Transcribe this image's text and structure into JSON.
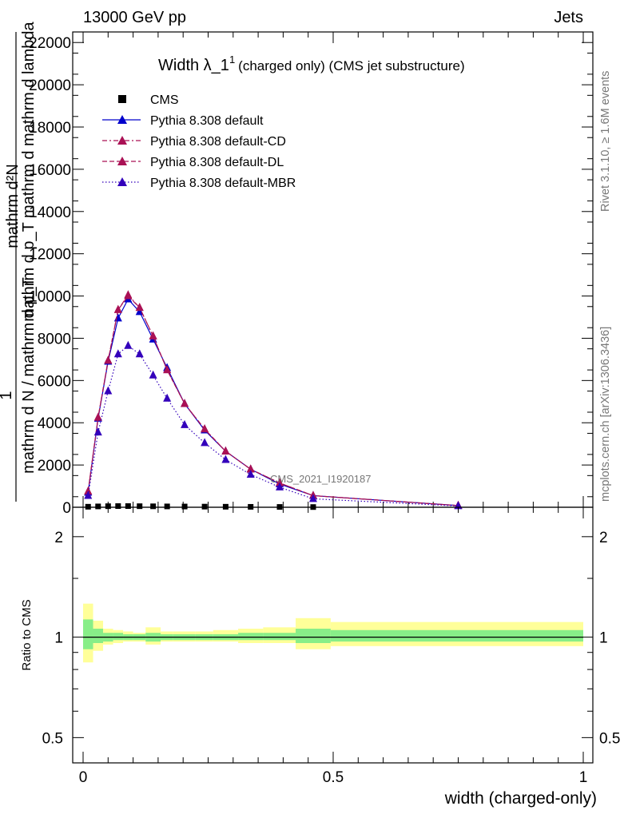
{
  "header": {
    "left": "13000 GeV pp",
    "right": "Jets"
  },
  "side_labels": {
    "rivet": "Rivet 3.1.10, ≥ 1.6M events",
    "mcplots": "mcplots.cern.ch [arXiv:1306.3436]"
  },
  "watermark": "CMS_2021_I1920187",
  "chart_data": [
    {
      "type": "line",
      "title_main": "Width λ_1",
      "title_sup": "1",
      "title_rest": "(charged only) (CMS jet substructure)",
      "xlabel": "width (charged-only)",
      "ylabel_parts": [
        "mathrm d²N",
        "mathrm d p_T mathrm d mathrm d lambda",
        "1",
        "mathrm d N / mathrm d p_T"
      ],
      "xlim": [
        0,
        1
      ],
      "ylim": [
        0,
        22500
      ],
      "yticks": [
        0,
        2000,
        4000,
        6000,
        8000,
        10000,
        12000,
        14000,
        16000,
        18000,
        20000,
        22000
      ],
      "ytick_labels": [
        "0",
        "2000",
        "4000",
        "6000",
        "8000",
        "10000",
        "12000",
        "14000",
        "16000",
        "18000",
        "20000",
        "22000"
      ],
      "legend_position": "top-left",
      "series": [
        {
          "name": "CMS",
          "color": "#000000",
          "marker": "square",
          "line": "none",
          "x": [
            0.01,
            0.03,
            0.05,
            0.07,
            0.09,
            0.113,
            0.14,
            0.168,
            0.203,
            0.243,
            0.285,
            0.335,
            0.393,
            0.46
          ],
          "y": [
            25,
            40,
            50,
            55,
            55,
            50,
            45,
            40,
            35,
            30,
            25,
            20,
            15,
            10
          ]
        },
        {
          "name": "Pythia 8.308 default",
          "color": "#0000cc",
          "marker": "triangle",
          "line": "solid",
          "x": [
            0.01,
            0.03,
            0.05,
            0.07,
            0.09,
            0.113,
            0.14,
            0.168,
            0.203,
            0.243,
            0.285,
            0.335,
            0.393,
            0.46,
            0.75
          ],
          "y": [
            700,
            4200,
            6900,
            8950,
            9850,
            9250,
            7950,
            6600,
            4900,
            3650,
            2650,
            1800,
            1100,
            550,
            80
          ]
        },
        {
          "name": "Pythia 8.308 default-CD",
          "color": "#aa1155",
          "marker": "triangle",
          "line": "dashdot",
          "x": [
            0.01,
            0.03,
            0.05,
            0.07,
            0.09,
            0.113,
            0.14,
            0.168,
            0.203,
            0.243,
            0.285,
            0.335,
            0.393,
            0.46,
            0.75
          ],
          "y": [
            750,
            4250,
            6950,
            9350,
            10050,
            9450,
            8100,
            6500,
            4900,
            3700,
            2650,
            1800,
            1150,
            550,
            80
          ]
        },
        {
          "name": "Pythia 8.308 default-DL",
          "color": "#aa1155",
          "marker": "triangle",
          "line": "dashed",
          "x": [
            0.01,
            0.03,
            0.05,
            0.07,
            0.09,
            0.113,
            0.14,
            0.168,
            0.203,
            0.243,
            0.285,
            0.335,
            0.393,
            0.46,
            0.75
          ],
          "y": [
            750,
            4250,
            6950,
            9350,
            10000,
            9450,
            8100,
            6500,
            4900,
            3700,
            2650,
            1800,
            1150,
            550,
            80
          ]
        },
        {
          "name": "Pythia 8.308 default-MBR",
          "color": "#3300bb",
          "marker": "triangle",
          "line": "dotted",
          "x": [
            0.01,
            0.03,
            0.05,
            0.07,
            0.09,
            0.113,
            0.14,
            0.168,
            0.203,
            0.243,
            0.285,
            0.335,
            0.393,
            0.46,
            0.75
          ],
          "y": [
            550,
            3550,
            5500,
            7250,
            7650,
            7250,
            6250,
            5150,
            3900,
            3050,
            2250,
            1550,
            950,
            400,
            60
          ]
        }
      ]
    },
    {
      "type": "area",
      "ylabel": "Ratio to CMS",
      "ylim": [
        0.42,
        2.45
      ],
      "log_scale": true,
      "yticks": [
        0.5,
        1,
        2
      ],
      "ytick_labels": [
        "0.5",
        "1",
        "2"
      ],
      "xticks": [
        0,
        0.5,
        1
      ],
      "xtick_labels": [
        "0",
        "0.5",
        "1"
      ],
      "reference_line": 1,
      "band_colors": {
        "outer": "#ffff99",
        "inner": "#88ee88"
      },
      "bins": [
        0,
        0.02,
        0.04,
        0.06,
        0.08,
        0.1,
        0.125,
        0.155,
        0.18,
        0.225,
        0.26,
        0.31,
        0.36,
        0.425,
        0.495,
        1.0
      ],
      "outer_band": [
        [
          0.84,
          1.26
        ],
        [
          0.91,
          1.12
        ],
        [
          0.95,
          1.06
        ],
        [
          0.96,
          1.05
        ],
        [
          0.97,
          1.04
        ],
        [
          0.97,
          1.03
        ],
        [
          0.95,
          1.07
        ],
        [
          0.97,
          1.04
        ],
        [
          0.97,
          1.04
        ],
        [
          0.97,
          1.04
        ],
        [
          0.97,
          1.05
        ],
        [
          0.96,
          1.06
        ],
        [
          0.96,
          1.07
        ],
        [
          0.92,
          1.14
        ],
        [
          0.94,
          1.11
        ]
      ],
      "inner_band": [
        [
          0.92,
          1.13
        ],
        [
          0.96,
          1.06
        ],
        [
          0.97,
          1.03
        ],
        [
          0.98,
          1.03
        ],
        [
          0.98,
          1.02
        ],
        [
          0.98,
          1.02
        ],
        [
          0.97,
          1.03
        ],
        [
          0.98,
          1.02
        ],
        [
          0.98,
          1.02
        ],
        [
          0.98,
          1.02
        ],
        [
          0.98,
          1.02
        ],
        [
          0.98,
          1.03
        ],
        [
          0.98,
          1.03
        ],
        [
          0.96,
          1.06
        ],
        [
          0.97,
          1.05
        ]
      ]
    }
  ]
}
